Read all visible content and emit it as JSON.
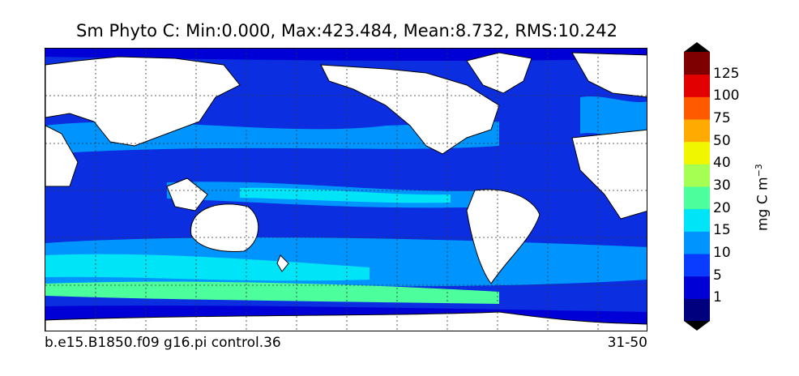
{
  "title": "Sm Phyto C: Min:0.000, Max:423.484, Mean:8.732, RMS:10.242",
  "footer": {
    "left": "b.e15.B1850.f09 g16.pi control.36",
    "right": "31-50"
  },
  "colorbar": {
    "unit_text": "mg C m",
    "unit_exponent": "−3",
    "ticks": [
      "1",
      "5",
      "10",
      "15",
      "20",
      "30",
      "40",
      "50",
      "75",
      "100",
      "125"
    ],
    "colors": [
      "#00007f",
      "#0000d6",
      "#0a3cff",
      "#0094ff",
      "#00e4f8",
      "#4dff9c",
      "#a4ff52",
      "#f0f600",
      "#ffaa00",
      "#ff5a00",
      "#e30000",
      "#7f0000"
    ],
    "under_color": "#000000",
    "over_color": "#000000"
  },
  "map": {
    "land_color": "#ffffff",
    "ocean_base_color": "#0a2ee0",
    "gridlines": "dotted"
  }
}
